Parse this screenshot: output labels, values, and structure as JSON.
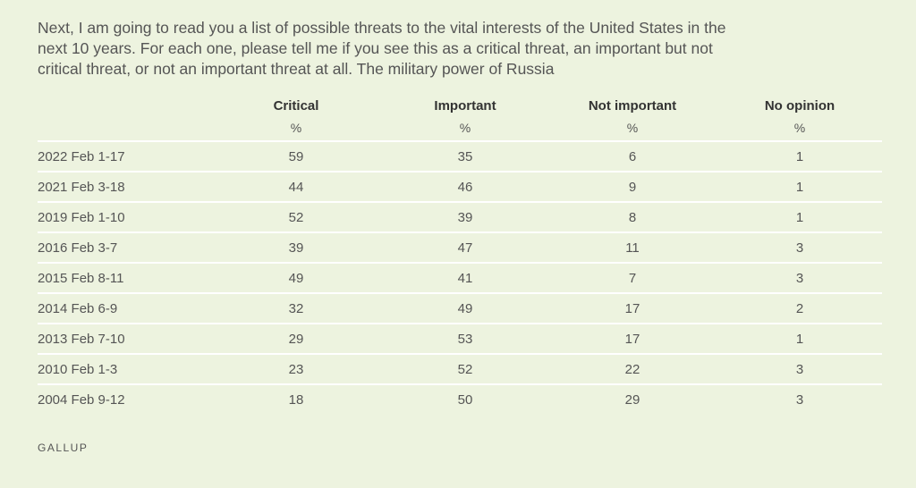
{
  "chart_data": {
    "type": "table",
    "title": "Next, I am going to read you a list of possible threats to the vital interests of the United States in the next 10 years. For each one, please tell me if you see this as a critical threat, an important but not critical threat, or not an important threat at all. The military power of Russia",
    "columns": [
      "Critical",
      "Important",
      "Not important",
      "No opinion"
    ],
    "units": [
      "%",
      "%",
      "%",
      "%"
    ],
    "rows": [
      {
        "label": "2022 Feb 1-17",
        "values": [
          "59",
          "35",
          "6",
          "1"
        ]
      },
      {
        "label": "2021 Feb 3-18",
        "values": [
          "44",
          "46",
          "9",
          "1"
        ]
      },
      {
        "label": "2019 Feb 1-10",
        "values": [
          "52",
          "39",
          "8",
          "1"
        ]
      },
      {
        "label": "2016 Feb 3-7",
        "values": [
          "39",
          "47",
          "11",
          "3"
        ]
      },
      {
        "label": "2015 Feb 8-11",
        "values": [
          "49",
          "41",
          "7",
          "3"
        ]
      },
      {
        "label": "2014 Feb 6-9",
        "values": [
          "32",
          "49",
          "17",
          "2"
        ]
      },
      {
        "label": "2013 Feb 7-10",
        "values": [
          "29",
          "53",
          "17",
          "1"
        ]
      },
      {
        "label": "2010 Feb 1-3",
        "values": [
          "23",
          "52",
          "22",
          "3"
        ]
      },
      {
        "label": "2004 Feb 9-12",
        "values": [
          "18",
          "50",
          "29",
          "3"
        ]
      }
    ]
  },
  "source": "GALLUP",
  "colors": {
    "background": "#edf3df",
    "row_divider": "#ffffff",
    "text": "#555555"
  }
}
